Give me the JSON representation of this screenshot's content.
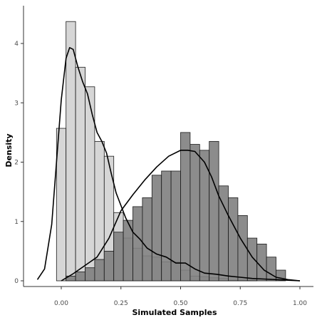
{
  "chart_data": {
    "type": "histogram",
    "xlabel": "Simulated Samples",
    "ylabel": "Density",
    "xlim": [
      -0.1,
      1.0
    ],
    "ylim": [
      0,
      4.6
    ],
    "x_ticks": [
      0.0,
      0.25,
      0.5,
      0.75,
      1.0
    ],
    "x_tick_labels": [
      "0.00",
      "0.25",
      "0.50",
      "0.75",
      "1.00"
    ],
    "y_ticks": [
      0,
      1,
      2,
      3,
      4
    ],
    "y_tick_labels": [
      "0",
      "1",
      "2",
      "3",
      "4"
    ],
    "grid": false,
    "legend": "none",
    "bin_width": 0.04,
    "series": [
      {
        "style": "light",
        "fill": "#d6d6d6",
        "bin_start": -0.02,
        "values": [
          2.57,
          4.37,
          3.6,
          3.27,
          2.35,
          2.1,
          1.15,
          0.72,
          0.55,
          0.42,
          0.4,
          0.32,
          0.32,
          0.18,
          0.08,
          0.07,
          0.05,
          0.04,
          0.01,
          0.01,
          0.01
        ]
      },
      {
        "style": "dark",
        "fill": "#7f7f7f",
        "bin_start": 0.02,
        "values": [
          0.08,
          0.15,
          0.22,
          0.36,
          0.5,
          0.82,
          1.02,
          1.25,
          1.4,
          1.78,
          1.85,
          1.85,
          2.5,
          2.3,
          2.2,
          2.35,
          1.6,
          1.4,
          1.1,
          0.72,
          0.62,
          0.4,
          0.18
        ]
      }
    ],
    "density_curves": [
      {
        "x": [
          -0.1,
          -0.07,
          -0.04,
          -0.02,
          0.0,
          0.02,
          0.035,
          0.05,
          0.07,
          0.09,
          0.11,
          0.13,
          0.15,
          0.17,
          0.19,
          0.21,
          0.23,
          0.25,
          0.27,
          0.3,
          0.33,
          0.36,
          0.4,
          0.44,
          0.48,
          0.52,
          0.56,
          0.6,
          0.65,
          0.7,
          0.75,
          0.8,
          0.85,
          0.9,
          0.95,
          1.0
        ],
        "y": [
          0.02,
          0.2,
          0.95,
          2.0,
          3.05,
          3.75,
          3.93,
          3.9,
          3.6,
          3.35,
          3.15,
          2.8,
          2.5,
          2.35,
          2.15,
          1.8,
          1.48,
          1.27,
          1.06,
          0.82,
          0.7,
          0.55,
          0.45,
          0.4,
          0.3,
          0.3,
          0.2,
          0.13,
          0.11,
          0.08,
          0.06,
          0.04,
          0.03,
          0.02,
          0.01,
          0.0
        ]
      },
      {
        "x": [
          0.0,
          0.05,
          0.1,
          0.15,
          0.2,
          0.25,
          0.3,
          0.35,
          0.4,
          0.45,
          0.5,
          0.53,
          0.56,
          0.6,
          0.63,
          0.66,
          0.7,
          0.75,
          0.8,
          0.85,
          0.9,
          0.95,
          1.0
        ],
        "y": [
          0.0,
          0.12,
          0.26,
          0.4,
          0.72,
          1.18,
          1.45,
          1.7,
          1.92,
          2.1,
          2.2,
          2.2,
          2.18,
          2.0,
          1.75,
          1.43,
          1.1,
          0.72,
          0.4,
          0.18,
          0.06,
          0.02,
          0.0
        ]
      }
    ]
  }
}
